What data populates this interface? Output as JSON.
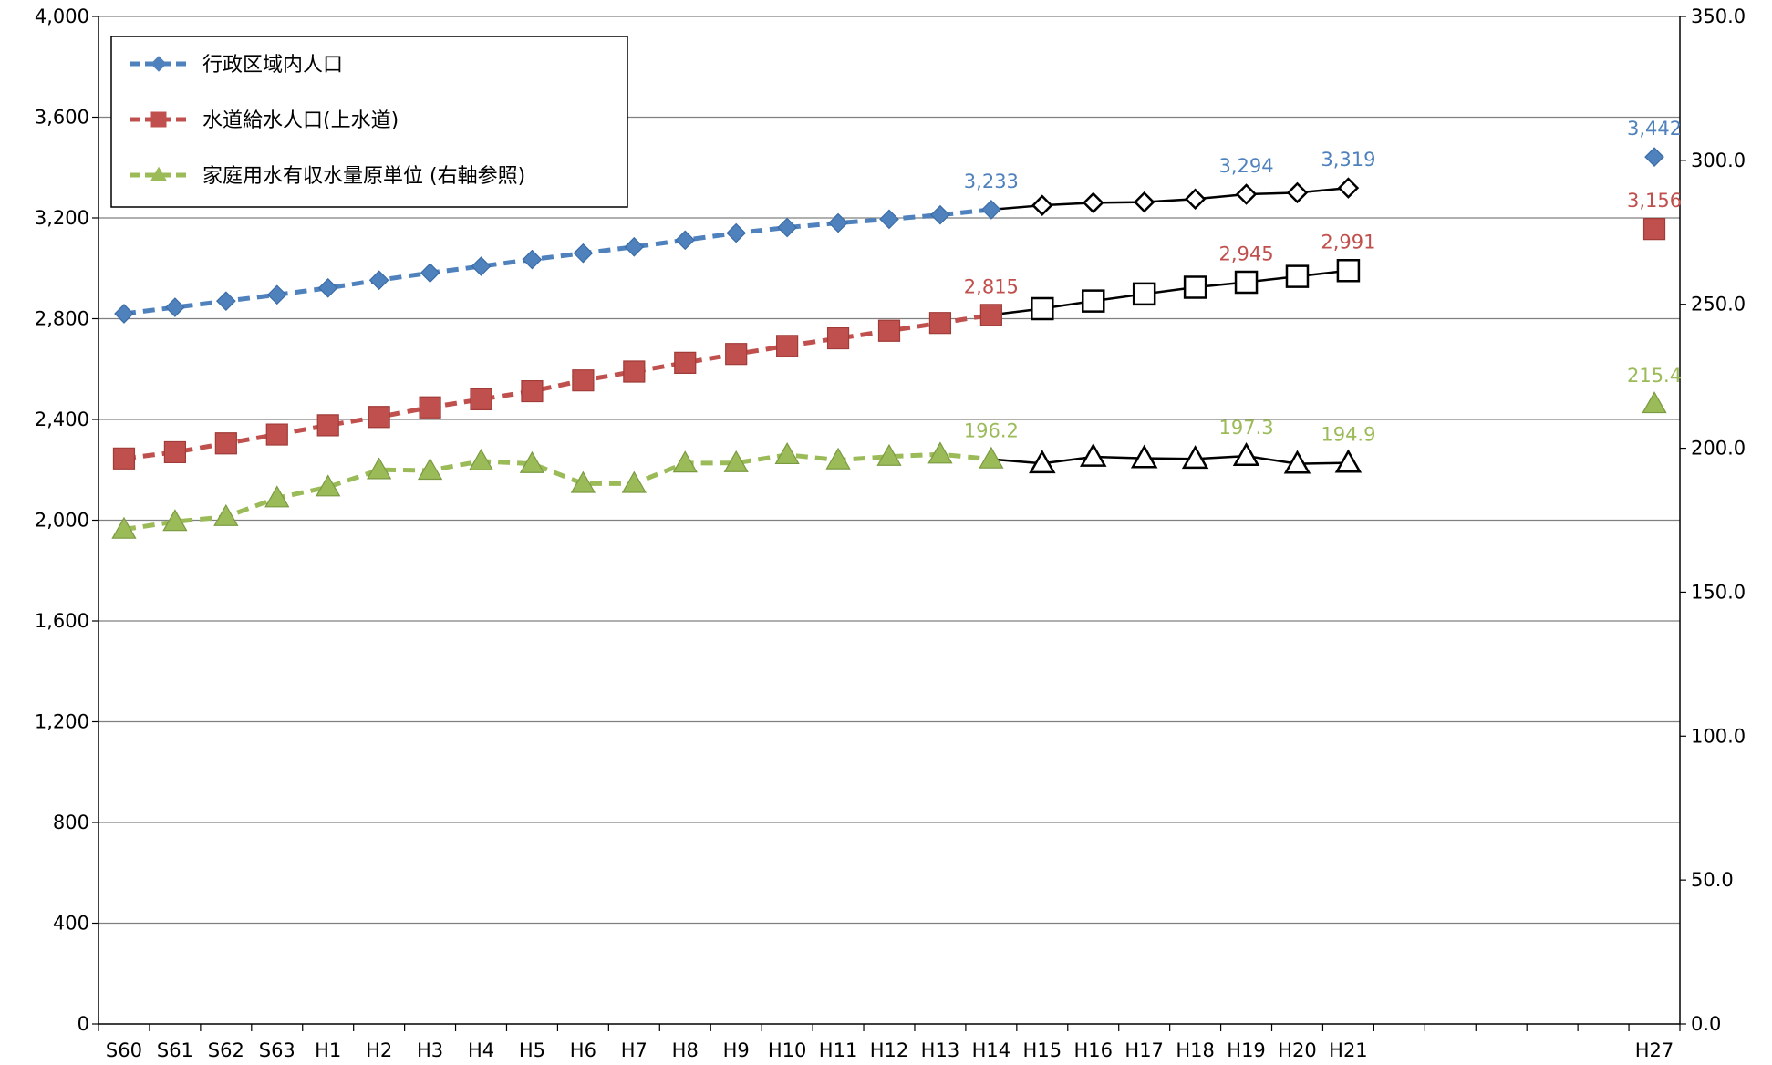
{
  "chart_data": {
    "type": "line",
    "categories": [
      "S60",
      "S61",
      "S62",
      "S63",
      "H1",
      "H2",
      "H3",
      "H4",
      "H5",
      "H6",
      "H7",
      "H8",
      "H9",
      "H10",
      "H11",
      "H12",
      "H13",
      "H14",
      "H15",
      "H16",
      "H17",
      "H18",
      "H19",
      "H20",
      "H21",
      "",
      "",
      "",
      "",
      "",
      "H27"
    ],
    "x_ticks": [
      "S60",
      "S61",
      "S62",
      "S63",
      "H1",
      "H2",
      "H3",
      "H4",
      "H5",
      "H6",
      "H7",
      "H8",
      "H9",
      "H10",
      "H11",
      "H12",
      "H13",
      "H14",
      "H15",
      "H16",
      "H17",
      "H18",
      "H19",
      "H20",
      "H21",
      "H27"
    ],
    "y_left": {
      "ylim": [
        0,
        4000
      ],
      "ticks": [
        "0",
        "400",
        "800",
        "1,200",
        "1,600",
        "2,000",
        "2,400",
        "2,800",
        "3,200",
        "3,600",
        "4,000"
      ],
      "tick_values": [
        0,
        400,
        800,
        1200,
        1600,
        2000,
        2400,
        2800,
        3200,
        3600,
        4000
      ]
    },
    "y_right": {
      "ylim": [
        0,
        350
      ],
      "ticks": [
        "0.0",
        "50.0",
        "100.0",
        "150.0",
        "200.0",
        "250.0",
        "300.0",
        "350.0"
      ],
      "tick_values": [
        0,
        50,
        100,
        150,
        200,
        250,
        300,
        350
      ]
    },
    "grid": true,
    "legend": {
      "placement": "top-left"
    },
    "series": [
      {
        "name": "行政区域内人口",
        "axis": "left",
        "color": "#4F81BD",
        "marker": "diamond",
        "values": [
          2820,
          2845,
          2870,
          2895,
          2922,
          2953,
          2982,
          3008,
          3035,
          3060,
          3085,
          3112,
          3140,
          3162,
          3180,
          3195,
          3212,
          3233,
          3250,
          3260,
          3263,
          3275,
          3294,
          3300,
          3319,
          null,
          null,
          null,
          null,
          null,
          3442
        ],
        "labels": [
          {
            "index": 17,
            "text": "3,233"
          },
          {
            "index": 22,
            "text": "3,294"
          },
          {
            "index": 24,
            "text": "3,319"
          },
          {
            "index": 30,
            "text": "3,442"
          }
        ]
      },
      {
        "name": "水道給水人口(上水道)",
        "axis": "left",
        "color": "#C0504D",
        "marker": "square",
        "values": [
          2245,
          2270,
          2305,
          2340,
          2377,
          2410,
          2448,
          2480,
          2512,
          2555,
          2590,
          2625,
          2660,
          2692,
          2722,
          2752,
          2783,
          2815,
          2840,
          2870,
          2898,
          2925,
          2945,
          2968,
          2991,
          null,
          null,
          null,
          null,
          null,
          3156
        ],
        "labels": [
          {
            "index": 17,
            "text": "2,815"
          },
          {
            "index": 22,
            "text": "2,945"
          },
          {
            "index": 24,
            "text": "2,991"
          },
          {
            "index": 30,
            "text": "3,156"
          }
        ]
      },
      {
        "name": "家庭用水有収水量原単位 (右軸参照)",
        "axis": "right",
        "color": "#9BBB59",
        "marker": "triangle",
        "values": [
          171.8,
          174.5,
          176.2,
          182.7,
          186.5,
          192.5,
          192.3,
          195.5,
          194.6,
          187.7,
          187.7,
          194.8,
          194.9,
          197.7,
          195.9,
          197.1,
          197.9,
          196.2,
          194.7,
          197.0,
          196.5,
          196.3,
          197.3,
          194.6,
          194.9,
          null,
          null,
          null,
          null,
          null,
          215.4
        ],
        "labels": [
          {
            "index": 17,
            "text": "196.2"
          },
          {
            "index": 22,
            "text": "197.3"
          },
          {
            "index": 24,
            "text": "194.9"
          },
          {
            "index": 30,
            "text": "215.4"
          }
        ]
      }
    ]
  }
}
